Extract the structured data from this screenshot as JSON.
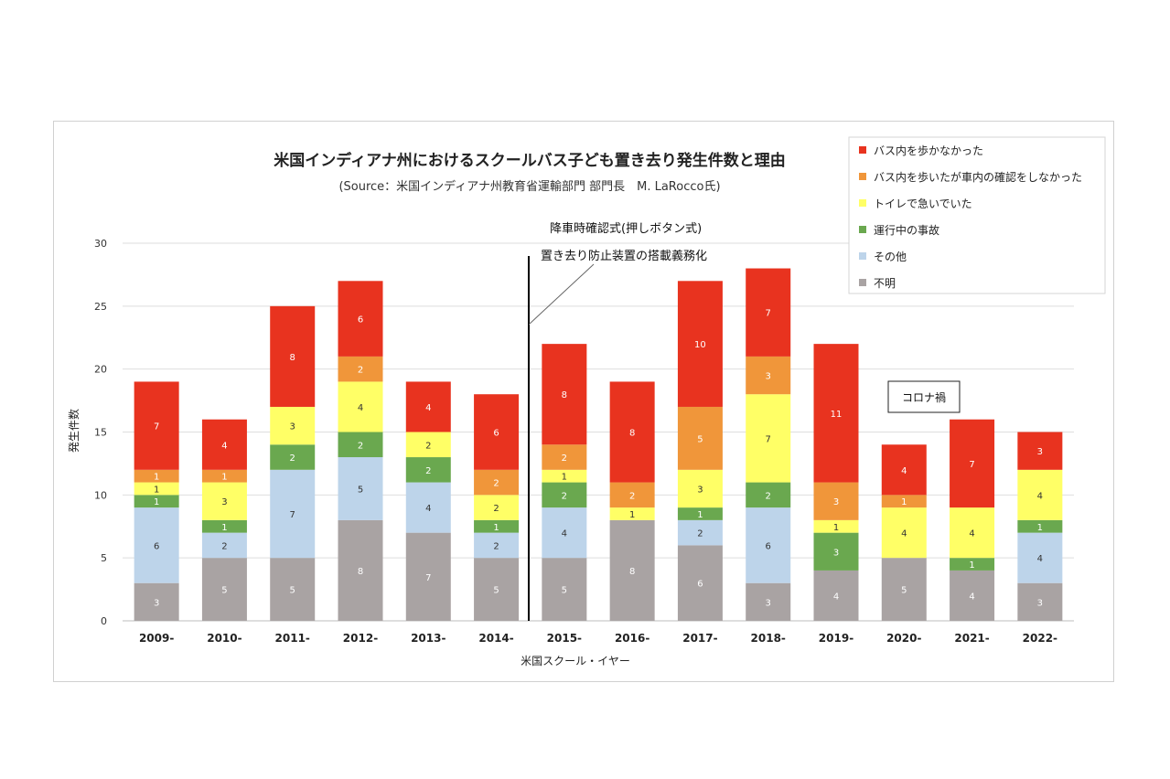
{
  "chart_data": {
    "type": "bar",
    "stacked": true,
    "title": "米国インディアナ州におけるスクールバス子ども置き去り発生件数と理由",
    "subtitle": "(Source：米国インディアナ州教育省運輸部門 部門長　M. LaRocco氏)",
    "xlabel": "米国スクール・イヤー",
    "ylabel": "発生件数",
    "ylim": [
      0,
      30
    ],
    "yticks": [
      0,
      5,
      10,
      15,
      20,
      25,
      30
    ],
    "grid": true,
    "legend_position": "top-right",
    "categories": [
      "2009-",
      "2010-",
      "2011-",
      "2012-",
      "2013-",
      "2014-",
      "2015-",
      "2016-",
      "2017-",
      "2018-",
      "2019-",
      "2020-",
      "2021-",
      "2022-"
    ],
    "series": [
      {
        "name": "不明",
        "color": "#a9a3a3",
        "values": [
          3,
          5,
          5,
          8,
          7,
          5,
          5,
          8,
          6,
          3,
          4,
          5,
          4,
          3
        ]
      },
      {
        "name": "その他",
        "color": "#bdd4ea",
        "values": [
          6,
          2,
          7,
          5,
          4,
          2,
          4,
          0,
          2,
          6,
          0,
          0,
          0,
          4
        ]
      },
      {
        "name": "運行中の事故",
        "color": "#6aa84f",
        "values": [
          1,
          1,
          2,
          2,
          2,
          1,
          2,
          0,
          1,
          2,
          3,
          0,
          1,
          1
        ]
      },
      {
        "name": "トイレで急いでいた",
        "color": "#ffff66",
        "values": [
          1,
          3,
          3,
          4,
          2,
          2,
          1,
          1,
          3,
          7,
          1,
          4,
          4,
          4
        ]
      },
      {
        "name": "バス内を歩いたが車内の確認をしなかった",
        "color": "#f0963a",
        "values": [
          1,
          1,
          0,
          2,
          0,
          2,
          2,
          2,
          5,
          3,
          3,
          1,
          0,
          0
        ]
      },
      {
        "name": "バス内を歩かなかった",
        "color": "#e8331f",
        "values": [
          7,
          4,
          8,
          6,
          4,
          6,
          8,
          8,
          10,
          7,
          11,
          4,
          7,
          3
        ]
      }
    ],
    "annotations": [
      {
        "text": "降車時確認式(押しボタン式)"
      },
      {
        "text": "置き去り防止装置の搭載義務化"
      },
      {
        "text": "コロナ禍"
      }
    ]
  }
}
